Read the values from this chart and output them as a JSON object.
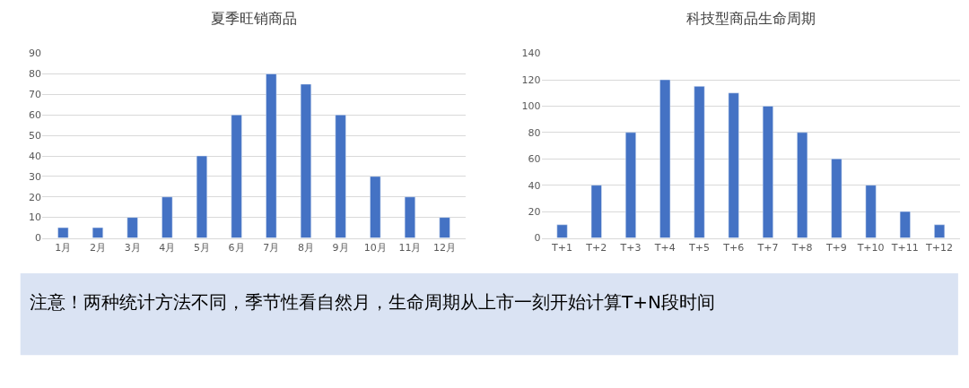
{
  "chart_data": [
    {
      "type": "bar",
      "title": "夏季旺销商品",
      "categories": [
        "1月",
        "2月",
        "3月",
        "4月",
        "5月",
        "6月",
        "7月",
        "8月",
        "9月",
        "10月",
        "11月",
        "12月"
      ],
      "values": [
        5,
        5,
        10,
        20,
        40,
        60,
        80,
        75,
        60,
        30,
        20,
        10
      ],
      "color": "#4472c4",
      "ylim": [
        0,
        90
      ],
      "yticks": [
        0,
        10,
        20,
        30,
        40,
        50,
        60,
        70,
        80,
        90
      ],
      "grid": "y"
    },
    {
      "type": "bar",
      "title": "科技型商品生命周期",
      "categories": [
        "T+1",
        "T+2",
        "T+3",
        "T+4",
        "T+5",
        "T+6",
        "T+7",
        "T+8",
        "T+9",
        "T+10",
        "T+11",
        "T+12"
      ],
      "values": [
        10,
        40,
        80,
        120,
        115,
        110,
        100,
        80,
        60,
        40,
        20,
        10
      ],
      "color": "#4472c4",
      "ylim": [
        0,
        140
      ],
      "yticks": [
        0,
        20,
        40,
        60,
        80,
        100,
        120,
        140
      ],
      "grid": "y"
    },
    {
      "type": "other",
      "annotations": [
        "注意！两种统计方法不同，季节性看自然月，生命周期从上市一刻开始计算T+N段时间"
      ]
    }
  ]
}
